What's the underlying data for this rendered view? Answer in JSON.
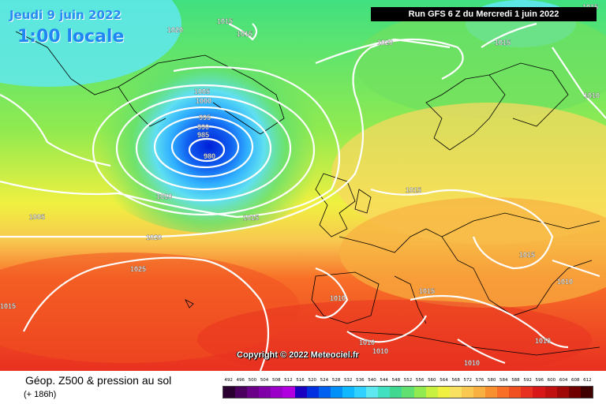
{
  "header": {
    "date": "Jeudi 9 juin 2022",
    "local_time": "1:00 locale",
    "run_info": "Run GFS 6 Z du Mercredi 1 juin 2022"
  },
  "copyright": "Copyright © 2022 Meteociel.fr",
  "product": {
    "title": "Géop. Z500 & pression au sol",
    "lead_time": "(+ 186h)"
  },
  "legend": {
    "labels": [
      "492",
      "496",
      "500",
      "504",
      "508",
      "512",
      "516",
      "520",
      "524",
      "528",
      "532",
      "536",
      "540",
      "544",
      "548",
      "552",
      "556",
      "560",
      "564",
      "568",
      "572",
      "576",
      "580",
      "584",
      "588",
      "592",
      "596",
      "600",
      "604",
      "608",
      "612"
    ],
    "colors": [
      "#2a0030",
      "#4b0060",
      "#6a0088",
      "#8000a8",
      "#9a00c8",
      "#b000e0",
      "#1a00c0",
      "#0030e0",
      "#0060f0",
      "#0090f8",
      "#10b8ff",
      "#30d0ff",
      "#60e8f0",
      "#40e0c0",
      "#40d890",
      "#60e070",
      "#90ea50",
      "#c8f040",
      "#f0f040",
      "#f8e060",
      "#f8c850",
      "#f8b040",
      "#f89030",
      "#f87028",
      "#f05020",
      "#e83020",
      "#d81818",
      "#c01010",
      "#a00808",
      "#700000",
      "#400000"
    ]
  },
  "pressure_labels": [
    "1020",
    "1015",
    "1015",
    "1020",
    "1015",
    "1015",
    "1005",
    "1000",
    "995",
    "990",
    "985",
    "980",
    "1010",
    "1010",
    "1005",
    "1015",
    "1015",
    "1020",
    "1025",
    "1015",
    "1015",
    "1010",
    "1010",
    "1010",
    "1015",
    "1010",
    "1010"
  ],
  "icons": {
    "coastline": "coastline-map",
    "isobar": "isobar-line"
  }
}
